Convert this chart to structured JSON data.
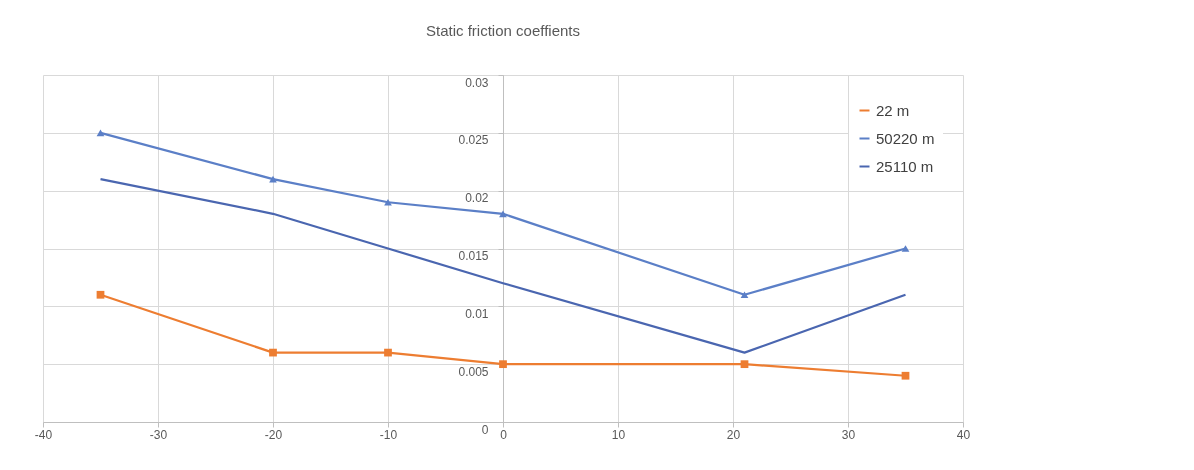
{
  "chart_data": {
    "type": "line",
    "title": "Static friction coeffients",
    "x": [
      -35,
      -20,
      -10,
      0,
      21,
      35
    ],
    "series": [
      {
        "name": "22 m",
        "color": "#ed7d31",
        "marker": "square",
        "values": [
          0.011,
          0.006,
          0.006,
          0.005,
          0.005,
          0.004
        ]
      },
      {
        "name": "50220 m",
        "color": "#5b7fc7",
        "marker": "triangle",
        "values": [
          0.025,
          0.021,
          0.019,
          0.018,
          0.011,
          0.015
        ]
      },
      {
        "name": "25110 m",
        "color": "#4a66b0",
        "marker": "none",
        "values": [
          0.021,
          0.018,
          0.015,
          0.012,
          0.006,
          0.011
        ]
      }
    ],
    "xlim": [
      -40,
      40
    ],
    "xticks": [
      -40,
      -30,
      -20,
      -10,
      0,
      10,
      20,
      30,
      40
    ],
    "ylim": [
      0,
      0.03
    ],
    "yticks": [
      0,
      0.005,
      0.01,
      0.015,
      0.02,
      0.025,
      0.03
    ],
    "grid": true,
    "legend": "top right",
    "line_style": "solid"
  }
}
